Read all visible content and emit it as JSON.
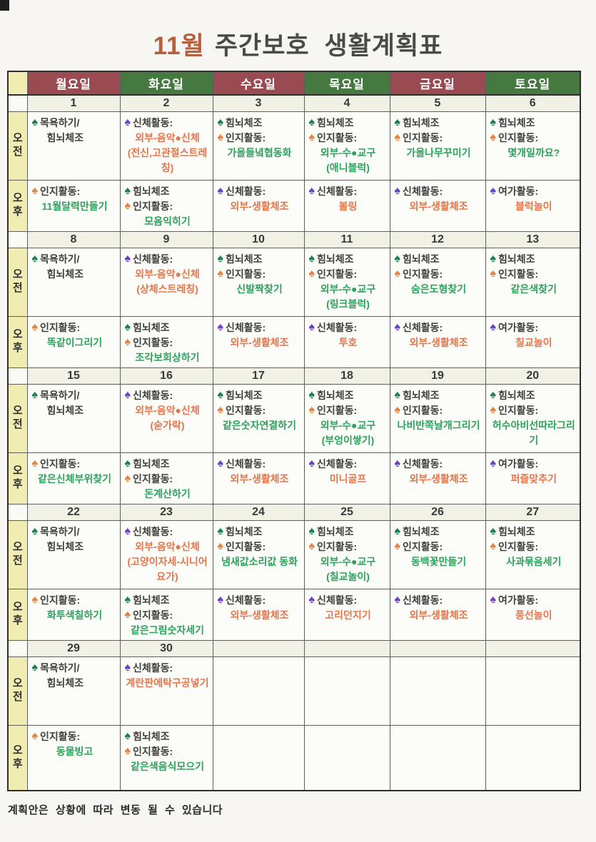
{
  "title": {
    "month": "11월",
    "rest": "주간보호 생활계획표"
  },
  "footer": "계획안은 상황에 따라 변동 될 수 있습니다",
  "session_labels": {
    "am": "오전",
    "pm": "오후"
  },
  "icons": {
    "spade": "♠"
  },
  "colors": {
    "header_maroon": "#9a4b52",
    "header_green": "#45793f",
    "label_yellow": "#f1edb2",
    "title_accent": "#b5603c",
    "green_spade": "#1b8050",
    "orange_spade": "#e8813d",
    "purple_spade": "#6b40c4",
    "green_text": "#2ca25c",
    "orange_text": "#e6764a",
    "dark_text": "#3e3e3c"
  },
  "day_headers": [
    {
      "label": "월요일",
      "color": "maroon"
    },
    {
      "label": "화요일",
      "color": "green"
    },
    {
      "label": "수요일",
      "color": "maroon"
    },
    {
      "label": "목요일",
      "color": "green"
    },
    {
      "label": "금요일",
      "color": "maroon"
    },
    {
      "label": "토요일",
      "color": "green"
    }
  ],
  "weeks": [
    {
      "dates": [
        "1",
        "2",
        "3",
        "4",
        "5",
        "6"
      ],
      "am": [
        [
          {
            "icon": "green-spade",
            "text": "목욕하기/",
            "color": "dark"
          },
          {
            "icon": null,
            "text": "힘뇌체조",
            "color": "dark"
          }
        ],
        [
          {
            "icon": "purple-spade",
            "text": "신체활동:",
            "color": "dark"
          },
          {
            "icon": null,
            "text": "외부-음악●신체",
            "color": "orange"
          },
          {
            "icon": null,
            "text": "(전신,고관절스트레칭)",
            "color": "orange"
          }
        ],
        [
          {
            "icon": "green-spade",
            "text": "힘뇌체조",
            "color": "dark"
          },
          {
            "icon": "orange-spade",
            "text": "인지활동:",
            "color": "dark"
          },
          {
            "icon": null,
            "text": "가을들녘협동화",
            "color": "green"
          }
        ],
        [
          {
            "icon": "green-spade",
            "text": "힘뇌체조",
            "color": "dark"
          },
          {
            "icon": "orange-spade",
            "text": "인지활동:",
            "color": "dark"
          },
          {
            "icon": null,
            "text": "외부-수●교구",
            "color": "green"
          },
          {
            "icon": null,
            "text": "(애니블럭)",
            "color": "green"
          }
        ],
        [
          {
            "icon": "green-spade",
            "text": "힘뇌체조",
            "color": "dark"
          },
          {
            "icon": "orange-spade",
            "text": "인지활동:",
            "color": "dark"
          },
          {
            "icon": null,
            "text": "가을나무꾸미기",
            "color": "green"
          }
        ],
        [
          {
            "icon": "green-spade",
            "text": "힘뇌체조",
            "color": "dark"
          },
          {
            "icon": "orange-spade",
            "text": "인지활동:",
            "color": "dark"
          },
          {
            "icon": null,
            "text": "몇개일까요?",
            "color": "green"
          }
        ]
      ],
      "pm": [
        [
          {
            "icon": "orange-spade",
            "text": "인지활동:",
            "color": "dark"
          },
          {
            "icon": null,
            "text": "11월달력만들기",
            "color": "green"
          }
        ],
        [
          {
            "icon": "green-spade",
            "text": "힘뇌체조",
            "color": "dark"
          },
          {
            "icon": "orange-spade",
            "text": "인지활동:",
            "color": "dark"
          },
          {
            "icon": null,
            "text": "모음익히기",
            "color": "green"
          }
        ],
        [
          {
            "icon": "purple-spade",
            "text": "신체활동:",
            "color": "dark"
          },
          {
            "icon": null,
            "text": "외부-생활체조",
            "color": "orange"
          }
        ],
        [
          {
            "icon": "purple-spade",
            "text": "신체활동:",
            "color": "dark"
          },
          {
            "icon": null,
            "text": "볼링",
            "color": "orange"
          }
        ],
        [
          {
            "icon": "purple-spade",
            "text": "신체활동:",
            "color": "dark"
          },
          {
            "icon": null,
            "text": "외부-생활체조",
            "color": "orange"
          }
        ],
        [
          {
            "icon": "purple-spade",
            "text": "여가활동:",
            "color": "dark"
          },
          {
            "icon": null,
            "text": "블럭놀이",
            "color": "orange"
          }
        ]
      ]
    },
    {
      "dates": [
        "8",
        "9",
        "10",
        "11",
        "12",
        "13"
      ],
      "am": [
        [
          {
            "icon": "green-spade",
            "text": "목욕하기/",
            "color": "dark"
          },
          {
            "icon": null,
            "text": "힘뇌체조",
            "color": "dark"
          }
        ],
        [
          {
            "icon": "purple-spade",
            "text": "신체활동:",
            "color": "dark"
          },
          {
            "icon": null,
            "text": "외부-음악●신체",
            "color": "orange"
          },
          {
            "icon": null,
            "text": "(상체스트레칭)",
            "color": "orange"
          }
        ],
        [
          {
            "icon": "green-spade",
            "text": "힘뇌체조",
            "color": "dark"
          },
          {
            "icon": "orange-spade",
            "text": "인지활동:",
            "color": "dark"
          },
          {
            "icon": null,
            "text": "신발짝찾기",
            "color": "green"
          }
        ],
        [
          {
            "icon": "green-spade",
            "text": "힘뇌체조",
            "color": "dark"
          },
          {
            "icon": "orange-spade",
            "text": "인지활동:",
            "color": "dark"
          },
          {
            "icon": null,
            "text": "외부-수●교구",
            "color": "green"
          },
          {
            "icon": null,
            "text": "(링크블럭)",
            "color": "green"
          }
        ],
        [
          {
            "icon": "green-spade",
            "text": "힘뇌체조",
            "color": "dark"
          },
          {
            "icon": "orange-spade",
            "text": "인지활동:",
            "color": "dark"
          },
          {
            "icon": null,
            "text": "숨은도형찾기",
            "color": "green"
          }
        ],
        [
          {
            "icon": "green-spade",
            "text": "힘뇌체조",
            "color": "dark"
          },
          {
            "icon": "orange-spade",
            "text": "인지활동:",
            "color": "dark"
          },
          {
            "icon": null,
            "text": "같은색찾기",
            "color": "green"
          }
        ]
      ],
      "pm": [
        [
          {
            "icon": "orange-spade",
            "text": "인지활동:",
            "color": "dark"
          },
          {
            "icon": null,
            "text": "똑같이그리기",
            "color": "green"
          }
        ],
        [
          {
            "icon": "green-spade",
            "text": "힘뇌체조",
            "color": "dark"
          },
          {
            "icon": "orange-spade",
            "text": "인지활동:",
            "color": "dark"
          },
          {
            "icon": null,
            "text": "조각보회상하기",
            "color": "green"
          }
        ],
        [
          {
            "icon": "purple-spade",
            "text": "신체활동:",
            "color": "dark"
          },
          {
            "icon": null,
            "text": "외부-생활체조",
            "color": "orange"
          }
        ],
        [
          {
            "icon": "purple-spade",
            "text": "신체활동:",
            "color": "dark"
          },
          {
            "icon": null,
            "text": "투호",
            "color": "orange"
          }
        ],
        [
          {
            "icon": "purple-spade",
            "text": "신체활동:",
            "color": "dark"
          },
          {
            "icon": null,
            "text": "외부-생활체조",
            "color": "orange"
          }
        ],
        [
          {
            "icon": "purple-spade",
            "text": "여가활동:",
            "color": "dark"
          },
          {
            "icon": null,
            "text": "칠교놀이",
            "color": "orange"
          }
        ]
      ]
    },
    {
      "dates": [
        "15",
        "16",
        "17",
        "18",
        "19",
        "20"
      ],
      "am": [
        [
          {
            "icon": "green-spade",
            "text": "목욕하기/",
            "color": "dark"
          },
          {
            "icon": null,
            "text": "힘뇌체조",
            "color": "dark"
          }
        ],
        [
          {
            "icon": "purple-spade",
            "text": "신체활동:",
            "color": "dark"
          },
          {
            "icon": null,
            "text": "외부-음악●신체",
            "color": "orange"
          },
          {
            "icon": null,
            "text": "(숟가락)",
            "color": "orange"
          }
        ],
        [
          {
            "icon": "green-spade",
            "text": "힘뇌체조",
            "color": "dark"
          },
          {
            "icon": "orange-spade",
            "text": "인지활동:",
            "color": "dark"
          },
          {
            "icon": null,
            "text": "같은숫자연결하기",
            "color": "green"
          }
        ],
        [
          {
            "icon": "green-spade",
            "text": "힘뇌체조",
            "color": "dark"
          },
          {
            "icon": "orange-spade",
            "text": "인지활동:",
            "color": "dark"
          },
          {
            "icon": null,
            "text": "외부-수●교구",
            "color": "green"
          },
          {
            "icon": null,
            "text": "(부엉이쌓기)",
            "color": "green"
          }
        ],
        [
          {
            "icon": "green-spade",
            "text": "힘뇌체조",
            "color": "dark"
          },
          {
            "icon": "orange-spade",
            "text": "인지활동:",
            "color": "dark"
          },
          {
            "icon": null,
            "text": "나비반쪽날개그리기",
            "color": "green"
          }
        ],
        [
          {
            "icon": "green-spade",
            "text": "힘뇌체조",
            "color": "dark"
          },
          {
            "icon": "orange-spade",
            "text": "인지활동:",
            "color": "dark"
          },
          {
            "icon": null,
            "text": "허수아비선따라그리기",
            "color": "green"
          }
        ]
      ],
      "pm": [
        [
          {
            "icon": "orange-spade",
            "text": "인지활동:",
            "color": "dark"
          },
          {
            "icon": null,
            "text": "같은신체부위찾기",
            "color": "green"
          }
        ],
        [
          {
            "icon": "green-spade",
            "text": "힘뇌체조",
            "color": "dark"
          },
          {
            "icon": "orange-spade",
            "text": "인지활동:",
            "color": "dark"
          },
          {
            "icon": null,
            "text": "돈계산하기",
            "color": "green"
          }
        ],
        [
          {
            "icon": "purple-spade",
            "text": "신체활동:",
            "color": "dark"
          },
          {
            "icon": null,
            "text": "외부-생활체조",
            "color": "orange"
          }
        ],
        [
          {
            "icon": "purple-spade",
            "text": "신체활동:",
            "color": "dark"
          },
          {
            "icon": null,
            "text": "미니골프",
            "color": "orange"
          }
        ],
        [
          {
            "icon": "purple-spade",
            "text": "신체활동:",
            "color": "dark"
          },
          {
            "icon": null,
            "text": "외부-생활체조",
            "color": "orange"
          }
        ],
        [
          {
            "icon": "purple-spade",
            "text": "여가활동:",
            "color": "dark"
          },
          {
            "icon": null,
            "text": "퍼즐맞추기",
            "color": "orange"
          }
        ]
      ]
    },
    {
      "dates": [
        "22",
        "23",
        "24",
        "25",
        "26",
        "27"
      ],
      "am": [
        [
          {
            "icon": "green-spade",
            "text": "목욕하기/",
            "color": "dark"
          },
          {
            "icon": null,
            "text": "힘뇌체조",
            "color": "dark"
          }
        ],
        [
          {
            "icon": "purple-spade",
            "text": "신체활동:",
            "color": "dark"
          },
          {
            "icon": null,
            "text": "외부-음악●신체",
            "color": "orange"
          },
          {
            "icon": null,
            "text": "(고양이자세-시니어요가)",
            "color": "orange"
          }
        ],
        [
          {
            "icon": "green-spade",
            "text": "힘뇌체조",
            "color": "dark"
          },
          {
            "icon": "orange-spade",
            "text": "인지활동:",
            "color": "dark"
          },
          {
            "icon": null,
            "text": "냄새값소리값 동화",
            "color": "green"
          }
        ],
        [
          {
            "icon": "green-spade",
            "text": "힘뇌체조",
            "color": "dark"
          },
          {
            "icon": "orange-spade",
            "text": "인지활동:",
            "color": "dark"
          },
          {
            "icon": null,
            "text": "외부-수●교구",
            "color": "green"
          },
          {
            "icon": null,
            "text": "(칠교놀이)",
            "color": "green"
          }
        ],
        [
          {
            "icon": "green-spade",
            "text": "힘뇌체조",
            "color": "dark"
          },
          {
            "icon": "orange-spade",
            "text": "인지활동:",
            "color": "dark"
          },
          {
            "icon": null,
            "text": "동백꽃만들기",
            "color": "green"
          }
        ],
        [
          {
            "icon": "green-spade",
            "text": "힘뇌체조",
            "color": "dark"
          },
          {
            "icon": "orange-spade",
            "text": "인지활동:",
            "color": "dark"
          },
          {
            "icon": null,
            "text": "사과묶음세기",
            "color": "green"
          }
        ]
      ],
      "pm": [
        [
          {
            "icon": "orange-spade",
            "text": "인지활동:",
            "color": "dark"
          },
          {
            "icon": null,
            "text": "화투색칠하기",
            "color": "green"
          }
        ],
        [
          {
            "icon": "green-spade",
            "text": "힘뇌체조",
            "color": "dark"
          },
          {
            "icon": "orange-spade",
            "text": "인지활동:",
            "color": "dark"
          },
          {
            "icon": null,
            "text": "같은그림숫자세기",
            "color": "green"
          }
        ],
        [
          {
            "icon": "purple-spade",
            "text": "신체활동:",
            "color": "dark"
          },
          {
            "icon": null,
            "text": "외부-생활체조",
            "color": "orange"
          }
        ],
        [
          {
            "icon": "purple-spade",
            "text": "신체활동:",
            "color": "dark"
          },
          {
            "icon": null,
            "text": "고리던지기",
            "color": "orange"
          }
        ],
        [
          {
            "icon": "purple-spade",
            "text": "신체활동:",
            "color": "dark"
          },
          {
            "icon": null,
            "text": "외부-생활체조",
            "color": "orange"
          }
        ],
        [
          {
            "icon": "purple-spade",
            "text": "여가활동:",
            "color": "dark"
          },
          {
            "icon": null,
            "text": "풍선놀이",
            "color": "orange"
          }
        ]
      ]
    },
    {
      "dates": [
        "29",
        "30",
        "",
        "",
        "",
        ""
      ],
      "am": [
        [
          {
            "icon": "green-spade",
            "text": "목욕하기/",
            "color": "dark"
          },
          {
            "icon": null,
            "text": "힘뇌체조",
            "color": "dark"
          }
        ],
        [
          {
            "icon": "purple-spade",
            "text": "신체활동:",
            "color": "dark"
          },
          {
            "icon": null,
            "text": "계란판에탁구공넣기",
            "color": "orange"
          }
        ],
        [],
        [],
        [],
        []
      ],
      "pm": [
        [
          {
            "icon": "orange-spade",
            "text": "인지활동:",
            "color": "dark"
          },
          {
            "icon": null,
            "text": "동물빙고",
            "color": "green"
          }
        ],
        [
          {
            "icon": "green-spade",
            "text": "힘뇌체조",
            "color": "dark"
          },
          {
            "icon": "orange-spade",
            "text": "인지활동:",
            "color": "dark"
          },
          {
            "icon": null,
            "text": "같은색음식모으기",
            "color": "green"
          }
        ],
        [],
        [],
        [],
        []
      ]
    }
  ]
}
